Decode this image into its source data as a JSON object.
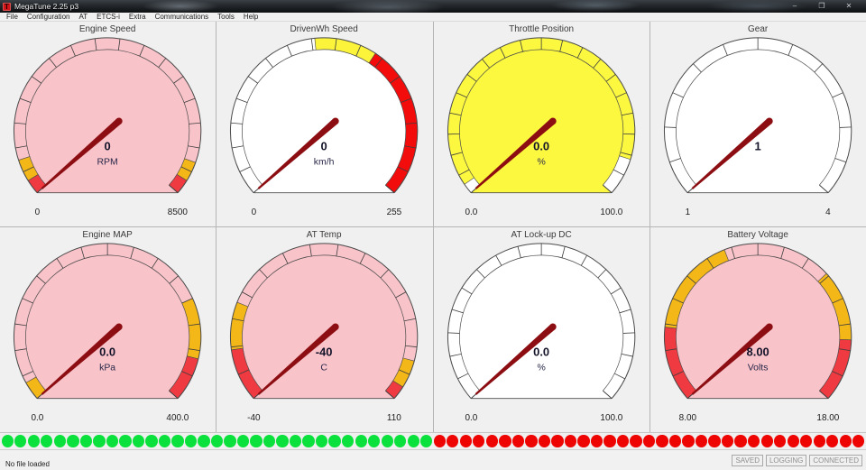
{
  "window": {
    "title": "MegaTune 2.25 p3",
    "icon_letter": "T",
    "controls": {
      "minimize": "–",
      "restore": "❐",
      "close": "✕"
    }
  },
  "menu": {
    "items": [
      "File",
      "Configuration",
      "AT",
      "ETCS-i",
      "Extra",
      "Communications",
      "Tools",
      "Help"
    ]
  },
  "colors": {
    "needle": "#8c0e12",
    "warn": "#f3b718",
    "danger": "#ee3a40",
    "face_danger_pink": "#f8c3c9",
    "face_warn_yellow": "#fcf83f",
    "face_normal_white": "#ffffff",
    "lamp_green": "#0be13c",
    "lamp_red": "#ee0400",
    "outline": "#4a4a4a"
  },
  "gauges": [
    {
      "title": "Engine Speed",
      "value": "0",
      "unit": "RPM",
      "min": 0,
      "max": 8500,
      "min_label": "0",
      "max_label": "8500",
      "needle_value": 0,
      "face": "#f8c3c9",
      "tick_segments": 17,
      "zones": [
        {
          "from": 0,
          "to": 300,
          "color": "#ee3a40"
        },
        {
          "from": 300,
          "to": 750,
          "color": "#f3b718"
        },
        {
          "from": 7800,
          "to": 8200,
          "color": "#f3b718"
        },
        {
          "from": 8200,
          "to": 8500,
          "color": "#ee3a40"
        }
      ]
    },
    {
      "title": "DrivenWh Speed",
      "value": "0",
      "unit": "km/h",
      "min": 0,
      "max": 255,
      "min_label": "0",
      "max_label": "255",
      "needle_value": 0,
      "face": "#ffffff",
      "tick_segments": 17,
      "zones": [
        {
          "from": 122,
          "to": 160,
          "color": "#fbf43b"
        },
        {
          "from": 160,
          "to": 255,
          "color": "#f20c0c"
        }
      ]
    },
    {
      "title": "Throttle Position",
      "value": "0.0",
      "unit": "%",
      "min": 0,
      "max": 100,
      "min_label": "0.0",
      "max_label": "100.0",
      "needle_value": 0,
      "face": "#fcf83f",
      "tick_segments": 20,
      "zones": [
        {
          "from": 0,
          "to": 2.5,
          "color": "#ffffff"
        },
        {
          "from": 91,
          "to": 100,
          "color": "#ffffff"
        }
      ]
    },
    {
      "title": "Gear",
      "value": "1",
      "unit": "",
      "min": 1,
      "max": 4,
      "min_label": "1",
      "max_label": "4",
      "needle_value": 1,
      "face": "#ffffff",
      "tick_segments": 12,
      "zones": []
    },
    {
      "title": "Engine MAP",
      "value": "0.0",
      "unit": "kPa",
      "min": 0,
      "max": 400,
      "min_label": "0.0",
      "max_label": "400.0",
      "needle_value": 0,
      "face": "#f8c3c9",
      "tick_segments": 16,
      "zones": [
        {
          "from": 0,
          "to": 18,
          "color": "#f3b718"
        },
        {
          "from": 300,
          "to": 358,
          "color": "#f3b718"
        },
        {
          "from": 358,
          "to": 400,
          "color": "#ee3a40"
        }
      ]
    },
    {
      "title": "AT Temp",
      "value": "-40",
      "unit": "C",
      "min": -40,
      "max": 110,
      "min_label": "-40",
      "max_label": "110",
      "needle_value": -40,
      "face": "#f8c3c9",
      "tick_segments": 15,
      "zones": [
        {
          "from": -40,
          "to": -21,
          "color": "#ee3a40"
        },
        {
          "from": -21,
          "to": -4,
          "color": "#f3b718"
        },
        {
          "from": 95,
          "to": 105,
          "color": "#f3b718"
        },
        {
          "from": 105,
          "to": 110,
          "color": "#ee3a40"
        }
      ]
    },
    {
      "title": "AT Lock-up DC",
      "value": "0.0",
      "unit": "%",
      "min": 0,
      "max": 100,
      "min_label": "0.0",
      "max_label": "100.0",
      "needle_value": 0,
      "face": "#ffffff",
      "tick_segments": 18,
      "zones": []
    },
    {
      "title": "Battery Voltage",
      "value": "8.00",
      "unit": "Volts",
      "min": 8,
      "max": 18,
      "min_label": "8.00",
      "max_label": "18.00",
      "needle_value": 8,
      "face": "#f8c3c9",
      "tick_segments": 16,
      "zones": [
        {
          "from": 8,
          "to": 9.8,
          "color": "#ee3a40"
        },
        {
          "from": 9.8,
          "to": 12.2,
          "color": "#f3b718"
        },
        {
          "from": 14.8,
          "to": 16.5,
          "color": "#f3b718"
        },
        {
          "from": 16.5,
          "to": 18,
          "color": "#ee3a40"
        }
      ]
    }
  ],
  "indicators": {
    "green_count": 33,
    "red_count": 33
  },
  "statusbar": {
    "left_text": "No file loaded",
    "panels": [
      "SAVED",
      "LOGGING",
      "CONNECTED"
    ]
  }
}
